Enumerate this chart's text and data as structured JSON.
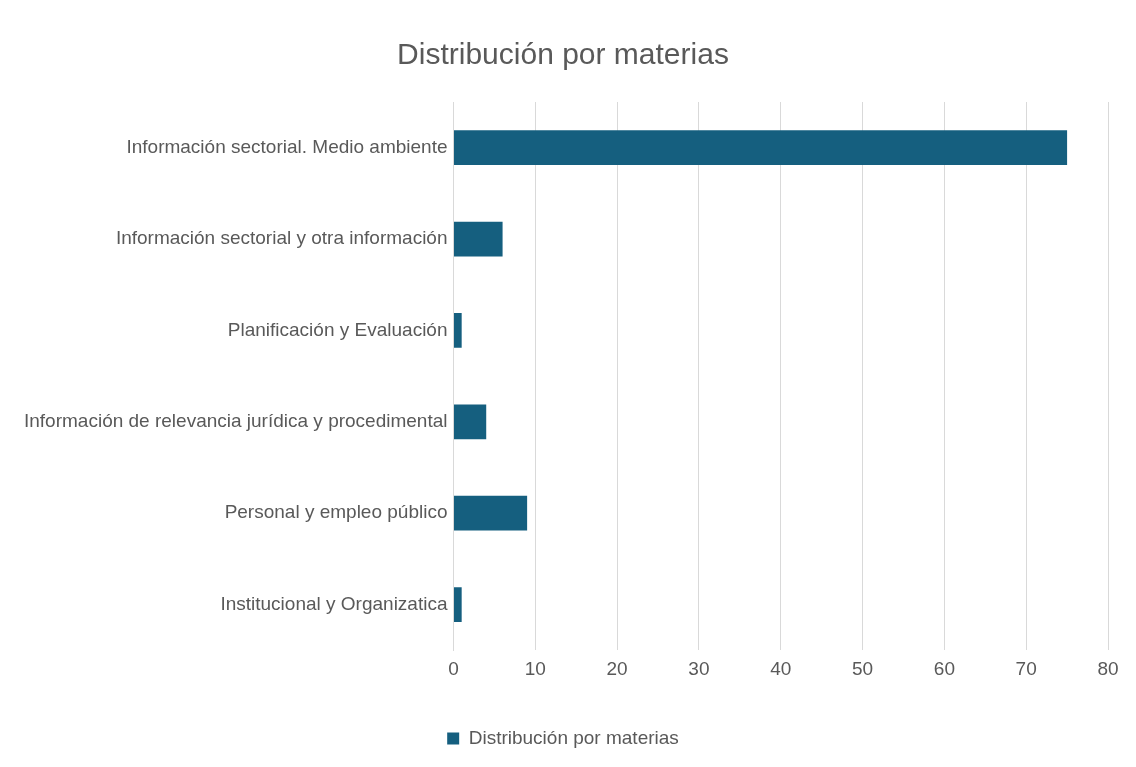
{
  "chart_data": {
    "type": "bar",
    "orientation": "horizontal",
    "title": "Distribución por materias",
    "categories": [
      "Información sectorial. Medio ambiente",
      "Información sectorial y otra información",
      "Planificación y Evaluación",
      "Información de relevancia jurídica y procedimental",
      "Personal y empleo público",
      "Institucional y Organizatica"
    ],
    "series": [
      {
        "name": "Distribución por materias",
        "color": "#155f7f",
        "values": [
          75,
          6,
          1,
          4,
          9,
          1
        ]
      }
    ],
    "xlim": [
      0,
      80
    ],
    "xticks": [
      0,
      10,
      20,
      30,
      40,
      50,
      60,
      70,
      80
    ],
    "grid": "x",
    "legend": "bottom"
  }
}
